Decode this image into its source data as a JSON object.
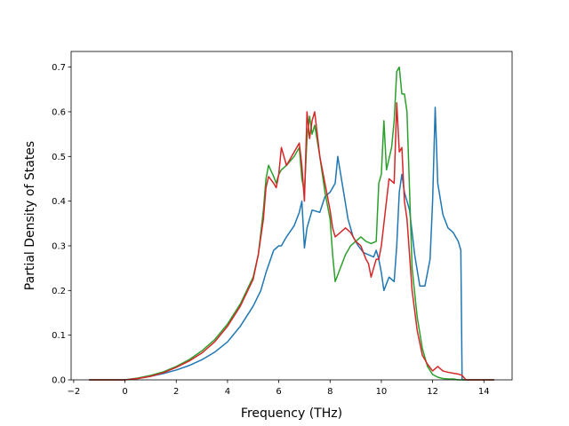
{
  "chart_data": {
    "type": "line",
    "title": "",
    "xlabel": "Frequency (THz)",
    "ylabel": "Partial Density of States",
    "xlim": [
      -2.1,
      15.1
    ],
    "ylim": [
      0.0,
      0.735
    ],
    "xticks": [
      -2,
      0,
      2,
      4,
      6,
      8,
      10,
      12,
      14
    ],
    "xtick_labels": [
      "−2",
      "0",
      "2",
      "4",
      "6",
      "8",
      "10",
      "12",
      "14"
    ],
    "yticks": [
      0.0,
      0.1,
      0.2,
      0.3,
      0.4,
      0.5,
      0.6,
      0.7
    ],
    "ytick_labels": [
      "0.0",
      "0.1",
      "0.2",
      "0.3",
      "0.4",
      "0.5",
      "0.6",
      "0.7"
    ],
    "grid": false,
    "legend": "none",
    "series": [
      {
        "color": "#1f77b4",
        "x": [
          -1.4,
          -0.5,
          0,
          0.5,
          1,
          1.5,
          2,
          2.5,
          3,
          3.5,
          4,
          4.5,
          5,
          5.3,
          5.5,
          5.8,
          5.9,
          6.0,
          6.1,
          6.3,
          6.6,
          6.8,
          6.9,
          7.0,
          7.1,
          7.3,
          7.6,
          7.8,
          8.0,
          8.2,
          8.3,
          8.5,
          8.7,
          8.9,
          9.1,
          9.3,
          9.5,
          9.7,
          9.8,
          9.9,
          10.0,
          10.1,
          10.3,
          10.5,
          10.6,
          10.7,
          10.8,
          10.9,
          11.1,
          11.2,
          11.3,
          11.5,
          11.7,
          11.9,
          12.0,
          12.1,
          12.2,
          12.4,
          12.6,
          12.8,
          13.0,
          13.1,
          13.15,
          13.3,
          14.0,
          14.4
        ],
        "y": [
          0.0,
          0.0,
          0.0,
          0.003,
          0.008,
          0.014,
          0.022,
          0.032,
          0.045,
          0.062,
          0.085,
          0.12,
          0.165,
          0.2,
          0.24,
          0.29,
          0.295,
          0.3,
          0.3,
          0.32,
          0.345,
          0.375,
          0.4,
          0.295,
          0.34,
          0.38,
          0.375,
          0.41,
          0.42,
          0.44,
          0.5,
          0.43,
          0.36,
          0.32,
          0.3,
          0.285,
          0.28,
          0.275,
          0.29,
          0.27,
          0.24,
          0.2,
          0.23,
          0.22,
          0.3,
          0.42,
          0.46,
          0.42,
          0.38,
          0.33,
          0.28,
          0.21,
          0.21,
          0.27,
          0.4,
          0.61,
          0.44,
          0.37,
          0.34,
          0.33,
          0.31,
          0.29,
          0.0,
          0.0,
          0.0,
          0.0
        ]
      },
      {
        "color": "#2ca02c",
        "x": [
          -1.4,
          -0.5,
          0,
          0.5,
          1,
          1.5,
          2,
          2.5,
          3,
          3.5,
          4,
          4.5,
          5,
          5.2,
          5.4,
          5.5,
          5.6,
          5.8,
          5.9,
          6.0,
          6.1,
          6.3,
          6.6,
          6.8,
          6.9,
          7.0,
          7.1,
          7.2,
          7.3,
          7.4,
          7.6,
          7.8,
          8.0,
          8.1,
          8.2,
          8.4,
          8.6,
          8.8,
          9.0,
          9.2,
          9.4,
          9.6,
          9.8,
          9.9,
          10.0,
          10.1,
          10.2,
          10.4,
          10.5,
          10.6,
          10.7,
          10.8,
          10.9,
          11.0,
          11.2,
          11.4,
          11.6,
          11.8,
          12.0,
          12.2,
          12.4,
          12.6,
          12.8,
          13.0,
          13.3,
          14.0,
          14.4
        ],
        "y": [
          0.0,
          0.0,
          0.0,
          0.004,
          0.01,
          0.018,
          0.03,
          0.045,
          0.065,
          0.09,
          0.125,
          0.17,
          0.23,
          0.28,
          0.38,
          0.45,
          0.48,
          0.455,
          0.44,
          0.46,
          0.47,
          0.48,
          0.5,
          0.52,
          0.45,
          0.42,
          0.54,
          0.59,
          0.55,
          0.57,
          0.5,
          0.42,
          0.36,
          0.28,
          0.22,
          0.25,
          0.28,
          0.3,
          0.31,
          0.32,
          0.31,
          0.305,
          0.31,
          0.44,
          0.46,
          0.58,
          0.47,
          0.52,
          0.58,
          0.69,
          0.7,
          0.64,
          0.64,
          0.6,
          0.25,
          0.14,
          0.07,
          0.03,
          0.012,
          0.006,
          0.003,
          0.002,
          0.002,
          0.0,
          0.0,
          0.0,
          0.0
        ]
      },
      {
        "color": "#d62728",
        "x": [
          -1.4,
          -0.5,
          0,
          0.5,
          1,
          1.5,
          2,
          2.5,
          3,
          3.5,
          4,
          4.5,
          5,
          5.2,
          5.4,
          5.5,
          5.6,
          5.8,
          5.9,
          6.0,
          6.1,
          6.3,
          6.5,
          6.7,
          6.8,
          6.9,
          7.0,
          7.1,
          7.2,
          7.3,
          7.4,
          7.6,
          7.8,
          8.0,
          8.1,
          8.2,
          8.4,
          8.6,
          8.8,
          9.0,
          9.2,
          9.4,
          9.5,
          9.6,
          9.8,
          9.9,
          10.0,
          10.1,
          10.3,
          10.5,
          10.6,
          10.7,
          10.8,
          10.9,
          11.0,
          11.2,
          11.4,
          11.6,
          11.8,
          12.0,
          12.2,
          12.4,
          12.6,
          12.8,
          13.0,
          13.15,
          13.3,
          14.0,
          14.4
        ],
        "y": [
          0.0,
          0.0,
          0.0,
          0.003,
          0.008,
          0.016,
          0.028,
          0.042,
          0.06,
          0.085,
          0.12,
          0.165,
          0.225,
          0.28,
          0.36,
          0.43,
          0.455,
          0.44,
          0.43,
          0.46,
          0.52,
          0.48,
          0.5,
          0.52,
          0.53,
          0.48,
          0.4,
          0.6,
          0.54,
          0.58,
          0.6,
          0.5,
          0.44,
          0.38,
          0.34,
          0.32,
          0.33,
          0.34,
          0.33,
          0.31,
          0.3,
          0.27,
          0.26,
          0.23,
          0.27,
          0.27,
          0.3,
          0.35,
          0.45,
          0.44,
          0.62,
          0.51,
          0.52,
          0.4,
          0.36,
          0.2,
          0.11,
          0.055,
          0.035,
          0.02,
          0.03,
          0.02,
          0.017,
          0.015,
          0.013,
          0.01,
          0.0,
          0.0,
          0.0
        ]
      }
    ]
  }
}
